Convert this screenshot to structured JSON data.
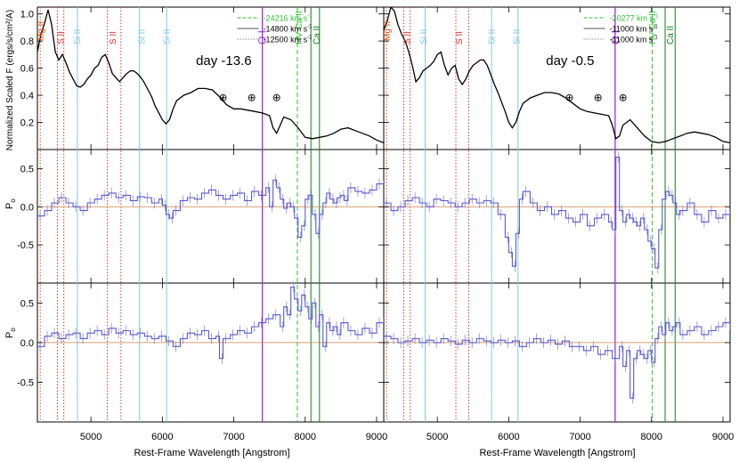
{
  "figure": {
    "xlabel": "Rest-Frame Wavelength [Angstrom]",
    "ylabel_flux": "Normalized Scaled F (ergs/s/cm²/A)",
    "ylabel_qrsp": "P",
    "ylabel_qrsp_sub": "o",
    "ylabel_urot": "P",
    "ylabel_urot_sub": "o",
    "x_ticks": [
      5000,
      6000,
      7000,
      8000,
      9000
    ],
    "x_tick_labels": [
      "5000",
      "6000",
      "7000",
      "8000",
      "9000"
    ],
    "flux_y_ticks": [
      0.2,
      0.4,
      0.6,
      0.8,
      1.0
    ],
    "flux_y_tick_labels": [
      "0.2",
      "0.4",
      "0.6",
      "0.8",
      "1.0"
    ],
    "pol_y_ticks": [
      -0.5,
      0.0,
      0.5
    ],
    "pol_y_tick_labels": [
      "-0.5",
      "0.0",
      "0.5"
    ],
    "telluric_symbol": "⊕",
    "colors": {
      "spectrum": "#000000",
      "pol_data": "#5a5acc",
      "pol_err": "#8a8ae0",
      "zero_line": "#c88040",
      "si": "#80c8e6",
      "s": "#e03030",
      "mg": "#e05010",
      "o": "#9b30e0",
      "ca": "#10801a",
      "hvca": "#30c030"
    }
  },
  "chart_data": [
    {
      "panel": "left",
      "type": "line",
      "epoch_label": "day -13.6",
      "xlim": [
        4250,
        9100
      ],
      "flux_ylim": [
        0.0,
        1.05
      ],
      "pol_ylim": [
        -1.0,
        0.75
      ],
      "legend": [
        {
          "label": "-24216 km s",
          "superscript": "-1",
          "style": "dashed-green"
        },
        {
          "label": "-14800 km s",
          "superscript": "-1",
          "style": "solid-gray"
        },
        {
          "label": "-12500 km s",
          "superscript": "-1",
          "style": "dotted-gray"
        }
      ],
      "line_ids": [
        {
          "label": "Mg II",
          "x": 4290,
          "element": "mg"
        },
        {
          "label": "S II",
          "x": 4570,
          "element": "s"
        },
        {
          "label": "Si II",
          "x": 4800,
          "element": "si"
        },
        {
          "label": "S II",
          "x": 5300,
          "element": "s"
        },
        {
          "label": "Si II",
          "x": 5700,
          "element": "si"
        },
        {
          "label": "Si II",
          "x": 6050,
          "element": "si"
        },
        {
          "label": "O I",
          "x": 7400,
          "element": "o"
        },
        {
          "label": "HV Ca II",
          "x": 7900,
          "element": "hvca"
        },
        {
          "label": "Ca II",
          "x": 8150,
          "element": "ca"
        }
      ],
      "marker_lines": [
        {
          "x": 4290,
          "element": "mg",
          "style": "dotted"
        },
        {
          "x": 4530,
          "element": "s",
          "style": "dotted"
        },
        {
          "x": 4620,
          "element": "s",
          "style": "dotted"
        },
        {
          "x": 4810,
          "element": "si",
          "style": "solid"
        },
        {
          "x": 5230,
          "element": "s",
          "style": "dotted"
        },
        {
          "x": 5420,
          "element": "s",
          "style": "dotted"
        },
        {
          "x": 5680,
          "element": "si",
          "style": "solid"
        },
        {
          "x": 6060,
          "element": "si",
          "style": "solid"
        },
        {
          "x": 7400,
          "element": "o",
          "style": "solid"
        },
        {
          "x": 7890,
          "element": "hvca",
          "style": "dashed"
        },
        {
          "x": 8080,
          "element": "ca",
          "style": "solid"
        },
        {
          "x": 8200,
          "element": "ca",
          "style": "solid"
        }
      ],
      "telluric_x": [
        6850,
        7250,
        7600
      ],
      "flux": {
        "x": [
          4250,
          4300,
          4350,
          4400,
          4450,
          4500,
          4550,
          4600,
          4650,
          4700,
          4750,
          4800,
          4850,
          4900,
          4950,
          5000,
          5050,
          5100,
          5150,
          5200,
          5250,
          5300,
          5350,
          5400,
          5450,
          5500,
          5550,
          5600,
          5650,
          5700,
          5750,
          5800,
          5850,
          5900,
          5950,
          6000,
          6050,
          6100,
          6150,
          6200,
          6300,
          6400,
          6500,
          6600,
          6700,
          6800,
          6900,
          7000,
          7100,
          7200,
          7300,
          7400,
          7500,
          7550,
          7600,
          7650,
          7700,
          7800,
          7900,
          8000,
          8100,
          8200,
          8300,
          8400,
          8500,
          8600,
          8700,
          8800,
          8900,
          9000,
          9100
        ],
        "y": [
          0.72,
          0.85,
          0.93,
          1.03,
          0.92,
          0.72,
          0.66,
          0.7,
          0.64,
          0.57,
          0.52,
          0.47,
          0.46,
          0.48,
          0.52,
          0.55,
          0.6,
          0.62,
          0.68,
          0.7,
          0.64,
          0.56,
          0.53,
          0.5,
          0.53,
          0.56,
          0.58,
          0.58,
          0.56,
          0.53,
          0.49,
          0.44,
          0.39,
          0.32,
          0.27,
          0.22,
          0.19,
          0.22,
          0.3,
          0.36,
          0.4,
          0.42,
          0.45,
          0.45,
          0.44,
          0.39,
          0.33,
          0.3,
          0.3,
          0.29,
          0.28,
          0.27,
          0.25,
          0.16,
          0.12,
          0.18,
          0.24,
          0.22,
          0.16,
          0.09,
          0.08,
          0.09,
          0.1,
          0.12,
          0.15,
          0.16,
          0.14,
          0.12,
          0.1,
          0.07,
          0.05
        ]
      },
      "pol_q": {
        "x": [
          4250,
          4350,
          4450,
          4550,
          4650,
          4750,
          4850,
          4950,
          5050,
          5150,
          5250,
          5350,
          5450,
          5550,
          5650,
          5750,
          5850,
          5950,
          6000,
          6050,
          6100,
          6150,
          6250,
          6350,
          6450,
          6550,
          6650,
          6750,
          6850,
          6950,
          7050,
          7150,
          7250,
          7350,
          7450,
          7500,
          7550,
          7600,
          7650,
          7700,
          7750,
          7800,
          7850,
          7900,
          7950,
          8000,
          8050,
          8100,
          8150,
          8200,
          8250,
          8300,
          8350,
          8400,
          8450,
          8500,
          8550,
          8600,
          8700,
          8800,
          8900,
          9000,
          9100
        ],
        "y": [
          -0.12,
          -0.05,
          0.05,
          0.12,
          0.05,
          0.0,
          -0.05,
          0.05,
          0.1,
          0.15,
          0.18,
          0.12,
          0.15,
          0.08,
          0.13,
          0.12,
          0.05,
          0.1,
          0.02,
          -0.1,
          -0.15,
          -0.05,
          0.08,
          0.12,
          0.1,
          0.18,
          0.22,
          0.15,
          0.1,
          0.15,
          0.18,
          0.08,
          0.2,
          0.15,
          0.25,
          0.0,
          0.35,
          0.25,
          0.1,
          -0.02,
          0.05,
          0.0,
          -0.15,
          -0.4,
          -0.25,
          0.1,
          0.15,
          -0.1,
          -0.35,
          -0.1,
          0.05,
          0.18,
          0.1,
          0.05,
          0.12,
          0.15,
          0.08,
          0.25,
          0.2,
          0.18,
          0.22,
          0.3,
          0.35
        ]
      },
      "pol_u": {
        "x": [
          4250,
          4350,
          4450,
          4550,
          4650,
          4750,
          4850,
          4950,
          5050,
          5150,
          5250,
          5350,
          5450,
          5550,
          5650,
          5750,
          5850,
          5950,
          6050,
          6150,
          6250,
          6350,
          6450,
          6550,
          6650,
          6750,
          6800,
          6850,
          6950,
          7050,
          7150,
          7250,
          7350,
          7450,
          7550,
          7650,
          7700,
          7750,
          7800,
          7850,
          7900,
          7950,
          8000,
          8050,
          8100,
          8150,
          8200,
          8250,
          8300,
          8350,
          8400,
          8450,
          8500,
          8600,
          8700,
          8800,
          8900,
          9000,
          9100
        ],
        "y": [
          -0.05,
          0.08,
          0.12,
          0.05,
          0.1,
          0.12,
          0.05,
          0.12,
          0.15,
          0.1,
          0.18,
          0.12,
          0.15,
          0.1,
          0.12,
          0.08,
          0.05,
          0.08,
          0.02,
          -0.05,
          0.05,
          0.12,
          0.1,
          0.15,
          0.05,
          0.08,
          -0.2,
          0.05,
          0.1,
          0.15,
          0.12,
          0.2,
          0.25,
          0.3,
          0.35,
          0.2,
          0.45,
          0.35,
          0.7,
          0.55,
          0.4,
          0.6,
          0.45,
          0.3,
          0.5,
          0.2,
          0.35,
          -0.05,
          0.25,
          0.15,
          0.2,
          0.1,
          0.25,
          0.15,
          0.1,
          0.18,
          0.12,
          0.25,
          0.3
        ]
      }
    },
    {
      "panel": "right",
      "type": "line",
      "epoch_label": "day -0.5",
      "xlim": [
        4250,
        9100
      ],
      "flux_ylim": [
        0.0,
        1.05
      ],
      "pol_ylim": [
        -1.0,
        0.75
      ],
      "legend": [
        {
          "label": "-20277 km s",
          "superscript": "-1",
          "style": "dashed-green"
        },
        {
          "label": "-11000 km s",
          "superscript": "-1",
          "style": "solid-gray"
        },
        {
          "label": "-11000 km s",
          "superscript": "-1",
          "style": "dotted-gray"
        }
      ],
      "line_ids": [
        {
          "label": "Mg II",
          "x": 4290,
          "element": "mg"
        },
        {
          "label": "S II",
          "x": 4570,
          "element": "s"
        },
        {
          "label": "Si II",
          "x": 4800,
          "element": "si"
        },
        {
          "label": "S II",
          "x": 5300,
          "element": "s"
        },
        {
          "label": "Si II",
          "x": 5750,
          "element": "si"
        },
        {
          "label": "Si II",
          "x": 6100,
          "element": "si"
        },
        {
          "label": "O I",
          "x": 7500,
          "element": "o"
        },
        {
          "label": "HV Ca II",
          "x": 8000,
          "element": "hvca"
        },
        {
          "label": "Ca II",
          "x": 8250,
          "element": "ca"
        }
      ],
      "marker_lines": [
        {
          "x": 4290,
          "element": "mg",
          "style": "dotted"
        },
        {
          "x": 4530,
          "element": "s",
          "style": "dotted"
        },
        {
          "x": 4620,
          "element": "s",
          "style": "dotted"
        },
        {
          "x": 4830,
          "element": "si",
          "style": "solid"
        },
        {
          "x": 5260,
          "element": "s",
          "style": "dotted"
        },
        {
          "x": 5440,
          "element": "s",
          "style": "dotted"
        },
        {
          "x": 5760,
          "element": "si",
          "style": "solid"
        },
        {
          "x": 6130,
          "element": "si",
          "style": "solid"
        },
        {
          "x": 7490,
          "element": "o",
          "style": "solid"
        },
        {
          "x": 8010,
          "element": "hvca",
          "style": "dashed"
        },
        {
          "x": 8190,
          "element": "ca",
          "style": "solid"
        },
        {
          "x": 8330,
          "element": "ca",
          "style": "solid"
        }
      ],
      "telluric_x": [
        6850,
        7250,
        7600
      ],
      "flux": {
        "x": [
          4250,
          4300,
          4350,
          4400,
          4450,
          4500,
          4550,
          4600,
          4650,
          4700,
          4750,
          4800,
          4850,
          4900,
          4950,
          5000,
          5050,
          5100,
          5150,
          5200,
          5250,
          5300,
          5350,
          5400,
          5450,
          5500,
          5550,
          5600,
          5650,
          5700,
          5750,
          5800,
          5850,
          5900,
          5950,
          6000,
          6050,
          6100,
          6150,
          6200,
          6300,
          6400,
          6500,
          6600,
          6700,
          6800,
          6900,
          7000,
          7100,
          7200,
          7300,
          7400,
          7450,
          7500,
          7550,
          7600,
          7700,
          7800,
          7900,
          8000,
          8100,
          8200,
          8300,
          8400,
          8500,
          8600,
          8700,
          8800,
          8900,
          9000,
          9100
        ],
        "y": [
          0.88,
          0.95,
          1.05,
          1.02,
          0.92,
          0.85,
          0.8,
          0.72,
          0.62,
          0.5,
          0.53,
          0.58,
          0.6,
          0.62,
          0.65,
          0.7,
          0.72,
          0.62,
          0.55,
          0.6,
          0.62,
          0.52,
          0.48,
          0.52,
          0.58,
          0.62,
          0.64,
          0.66,
          0.66,
          0.62,
          0.55,
          0.48,
          0.42,
          0.35,
          0.28,
          0.2,
          0.16,
          0.2,
          0.28,
          0.34,
          0.38,
          0.4,
          0.42,
          0.42,
          0.41,
          0.38,
          0.34,
          0.3,
          0.28,
          0.27,
          0.26,
          0.25,
          0.18,
          0.08,
          0.1,
          0.18,
          0.22,
          0.16,
          0.1,
          0.06,
          0.05,
          0.06,
          0.08,
          0.1,
          0.12,
          0.13,
          0.12,
          0.11,
          0.09,
          0.06,
          0.05
        ]
      },
      "pol_q": {
        "x": [
          4250,
          4350,
          4450,
          4550,
          4650,
          4750,
          4850,
          4950,
          5050,
          5150,
          5250,
          5350,
          5450,
          5550,
          5650,
          5750,
          5850,
          5950,
          6000,
          6050,
          6100,
          6150,
          6200,
          6300,
          6400,
          6500,
          6600,
          6700,
          6800,
          6900,
          7000,
          7100,
          7200,
          7300,
          7400,
          7450,
          7500,
          7550,
          7600,
          7650,
          7700,
          7750,
          7800,
          7850,
          7900,
          7950,
          8000,
          8050,
          8100,
          8150,
          8200,
          8250,
          8300,
          8350,
          8400,
          8500,
          8600,
          8700,
          8800,
          8900,
          9000,
          9100
        ],
        "y": [
          0.05,
          -0.05,
          0.0,
          0.08,
          0.12,
          0.05,
          0.0,
          0.1,
          0.08,
          0.05,
          0.0,
          0.05,
          0.1,
          0.05,
          0.08,
          0.05,
          -0.1,
          -0.4,
          -0.6,
          -0.78,
          -0.35,
          0.1,
          0.2,
          0.05,
          -0.05,
          0.0,
          -0.1,
          -0.05,
          -0.15,
          -0.2,
          -0.1,
          -0.25,
          -0.15,
          -0.1,
          -0.2,
          -0.3,
          0.65,
          -0.05,
          -0.2,
          -0.1,
          -0.15,
          -0.2,
          -0.25,
          -0.15,
          -0.3,
          -0.45,
          -0.55,
          -0.8,
          -0.3,
          0.1,
          0.2,
          0.15,
          0.05,
          -0.1,
          -0.05,
          0.05,
          -0.1,
          -0.2,
          -0.05,
          -0.15,
          -0.1,
          -0.05
        ]
      },
      "pol_u": {
        "x": [
          4250,
          4350,
          4450,
          4550,
          4650,
          4750,
          4850,
          4950,
          5050,
          5150,
          5250,
          5350,
          5450,
          5550,
          5650,
          5750,
          5850,
          5950,
          6050,
          6150,
          6250,
          6350,
          6450,
          6550,
          6650,
          6750,
          6850,
          6950,
          7050,
          7150,
          7250,
          7350,
          7450,
          7550,
          7600,
          7650,
          7700,
          7750,
          7800,
          7850,
          7900,
          7950,
          8000,
          8050,
          8100,
          8150,
          8200,
          8250,
          8300,
          8350,
          8400,
          8500,
          8600,
          8700,
          8800,
          8900,
          9000,
          9100
        ],
        "y": [
          0.08,
          0.05,
          0.0,
          0.02,
          0.05,
          0.0,
          0.03,
          0.0,
          0.05,
          0.02,
          -0.02,
          0.03,
          0.0,
          0.05,
          0.02,
          0.0,
          0.03,
          0.0,
          0.02,
          -0.05,
          0.0,
          0.05,
          0.0,
          0.03,
          -0.02,
          0.02,
          -0.05,
          -0.05,
          -0.1,
          -0.05,
          -0.15,
          -0.1,
          -0.2,
          -0.05,
          -0.3,
          -0.1,
          -0.7,
          -0.2,
          -0.1,
          -0.15,
          -0.2,
          -0.1,
          -0.25,
          0.05,
          0.2,
          0.1,
          0.25,
          0.15,
          0.2,
          0.25,
          0.1,
          0.15,
          0.2,
          0.1,
          0.15,
          0.2,
          0.25,
          0.15
        ]
      }
    }
  ]
}
